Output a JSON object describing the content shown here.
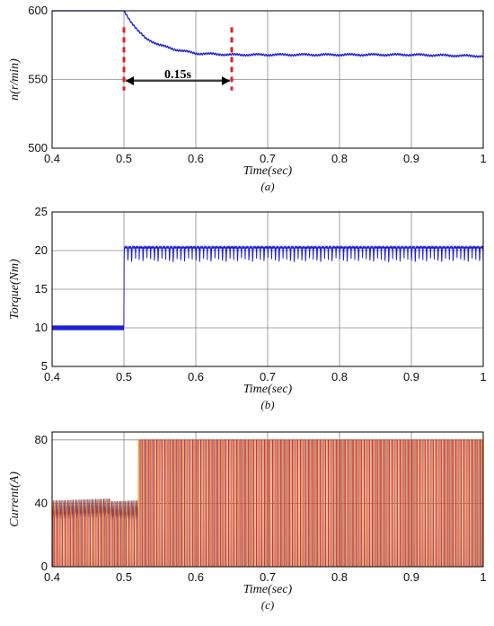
{
  "colors": {
    "speed": "#1f1fd6",
    "torque": "#1f1fd6",
    "phase_a": "#1f5fd0",
    "phase_b": "#e8891a",
    "phase_c": "#d9322a",
    "marker": "#e0202a"
  },
  "chart_data": [
    {
      "type": "line",
      "panel_id": "a",
      "caption": "(a)",
      "xlabel": "Time(sec)",
      "ylabel": "n(r/min)",
      "xlim": [
        0.4,
        1.0
      ],
      "ylim": [
        500,
        600
      ],
      "x_ticks": [
        "0.4",
        "0.5",
        "0.6",
        "0.7",
        "0.8",
        "0.9",
        "1"
      ],
      "y_ticks": [
        "500",
        "550",
        "600"
      ],
      "grid": true,
      "series": [
        {
          "x": [
            0.4,
            0.45,
            0.5,
            0.51,
            0.52,
            0.53,
            0.55,
            0.57,
            0.6,
            0.65,
            0.7,
            0.8,
            0.9,
            1.0
          ],
          "y": [
            600,
            600,
            600,
            592,
            585,
            580,
            575,
            572,
            569,
            568,
            568,
            568,
            568,
            567
          ]
        }
      ],
      "annotations": [
        {
          "type": "vline",
          "x": 0.5,
          "y_range": [
            542,
            588
          ],
          "style": "dashed-red"
        },
        {
          "type": "vline",
          "x": 0.65,
          "y_range": [
            542,
            588
          ],
          "style": "dashed-red"
        },
        {
          "type": "double-arrow",
          "x_range": [
            0.5,
            0.65
          ],
          "y": 549,
          "label": "0.15s"
        }
      ]
    },
    {
      "type": "line",
      "panel_id": "b",
      "caption": "(b)",
      "xlabel": "Time(sec)",
      "ylabel": "Torque(Nm)",
      "xlim": [
        0.4,
        1.0
      ],
      "ylim": [
        5,
        25
      ],
      "x_ticks": [
        "0.4",
        "0.5",
        "0.6",
        "0.7",
        "0.8",
        "0.9",
        "1"
      ],
      "y_ticks": [
        "5",
        "10",
        "15",
        "20",
        "25"
      ],
      "grid": true,
      "series": [
        {
          "x": [
            0.4,
            0.5,
            0.5,
            1.0
          ],
          "y": [
            10,
            10,
            20,
            20
          ],
          "ripple_low": [
            9.7,
            9.7,
            18.5,
            18.5
          ],
          "ripple_high": [
            10.3,
            10.3,
            20.5,
            20.5
          ]
        }
      ]
    },
    {
      "type": "line",
      "panel_id": "c",
      "caption": "(c)",
      "xlabel": "Time(sec)",
      "ylabel": "Current(A)",
      "xlim": [
        0.4,
        1.0
      ],
      "ylim": [
        0,
        85
      ],
      "x_ticks": [
        "0.4",
        "0.5",
        "0.6",
        "0.7",
        "0.8",
        "0.9",
        "1"
      ],
      "y_ticks": [
        "0",
        "40",
        "80"
      ],
      "grid": true,
      "series": [
        {
          "phase": "a",
          "x": [
            0.4,
            0.52,
            0.52,
            1.0
          ],
          "peak": [
            43,
            43,
            80,
            80
          ]
        },
        {
          "phase": "b",
          "x": [
            0.4,
            0.52,
            0.52,
            1.0
          ],
          "peak": [
            43,
            43,
            80,
            80
          ]
        },
        {
          "phase": "c",
          "x": [
            0.4,
            0.52,
            0.52,
            1.0
          ],
          "peak": [
            43,
            43,
            80,
            80
          ]
        }
      ]
    }
  ]
}
